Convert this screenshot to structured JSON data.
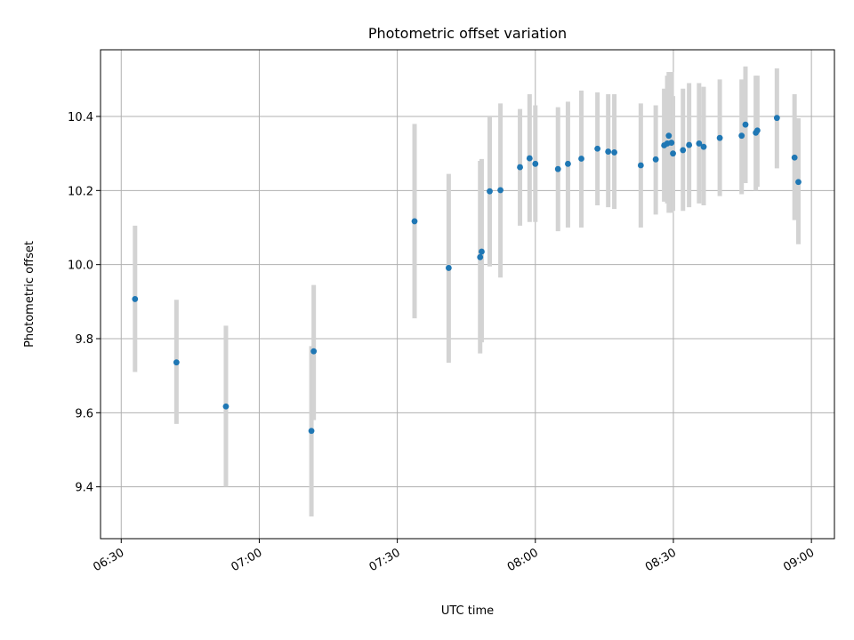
{
  "chart_data": {
    "type": "scatter",
    "title": "Photometric offset variation",
    "xlabel": "UTC time",
    "ylabel": "Photometric offset",
    "x_ticks": [
      "06:30",
      "07:00",
      "07:30",
      "08:00",
      "08:30",
      "09:00"
    ],
    "y_ticks": [
      "9.4",
      "9.6",
      "9.8",
      "10.0",
      "10.2",
      "10.4"
    ],
    "xlim": [
      "06:25:30",
      "09:05:00"
    ],
    "ylim": [
      9.26,
      10.58
    ],
    "grid": true,
    "marker_color": "#1f77b4",
    "errorbar_color": "#d3d3d3",
    "points": [
      {
        "t": "06:33:00",
        "y": 9.907,
        "lo": 9.71,
        "hi": 10.105
      },
      {
        "t": "06:42:00",
        "y": 9.736,
        "lo": 9.57,
        "hi": 9.905
      },
      {
        "t": "06:52:45",
        "y": 9.617,
        "lo": 9.4,
        "hi": 9.835
      },
      {
        "t": "07:11:20",
        "y": 9.551,
        "lo": 9.32,
        "hi": 9.78
      },
      {
        "t": "07:11:50",
        "y": 9.766,
        "lo": 9.58,
        "hi": 9.945
      },
      {
        "t": "07:33:45",
        "y": 10.117,
        "lo": 9.855,
        "hi": 10.38
      },
      {
        "t": "07:41:10",
        "y": 9.991,
        "lo": 9.735,
        "hi": 10.245
      },
      {
        "t": "07:48:00",
        "y": 10.02,
        "lo": 9.76,
        "hi": 10.28
      },
      {
        "t": "07:48:20",
        "y": 10.035,
        "lo": 9.79,
        "hi": 10.285
      },
      {
        "t": "07:50:05",
        "y": 10.198,
        "lo": 9.995,
        "hi": 10.4
      },
      {
        "t": "07:52:25",
        "y": 10.201,
        "lo": 9.965,
        "hi": 10.435
      },
      {
        "t": "07:56:40",
        "y": 10.263,
        "lo": 10.105,
        "hi": 10.42
      },
      {
        "t": "07:58:45",
        "y": 10.287,
        "lo": 10.115,
        "hi": 10.46
      },
      {
        "t": "08:00:00",
        "y": 10.272,
        "lo": 10.115,
        "hi": 10.43
      },
      {
        "t": "08:04:55",
        "y": 10.258,
        "lo": 10.09,
        "hi": 10.425
      },
      {
        "t": "08:07:05",
        "y": 10.272,
        "lo": 10.1,
        "hi": 10.44
      },
      {
        "t": "08:10:00",
        "y": 10.286,
        "lo": 10.1,
        "hi": 10.47
      },
      {
        "t": "08:13:30",
        "y": 10.313,
        "lo": 10.16,
        "hi": 10.465
      },
      {
        "t": "08:15:50",
        "y": 10.305,
        "lo": 10.155,
        "hi": 10.46
      },
      {
        "t": "08:17:10",
        "y": 10.303,
        "lo": 10.15,
        "hi": 10.46
      },
      {
        "t": "08:22:55",
        "y": 10.268,
        "lo": 10.1,
        "hi": 10.435
      },
      {
        "t": "08:26:10",
        "y": 10.284,
        "lo": 10.135,
        "hi": 10.43
      },
      {
        "t": "08:28:00",
        "y": 10.322,
        "lo": 10.17,
        "hi": 10.475
      },
      {
        "t": "08:28:40",
        "y": 10.327,
        "lo": 10.165,
        "hi": 10.51
      },
      {
        "t": "08:29:00",
        "y": 10.348,
        "lo": 10.14,
        "hi": 10.52
      },
      {
        "t": "08:29:35",
        "y": 10.329,
        "lo": 10.14,
        "hi": 10.52
      },
      {
        "t": "08:29:55",
        "y": 10.3,
        "lo": 10.145,
        "hi": 10.455
      },
      {
        "t": "08:32:05",
        "y": 10.309,
        "lo": 10.145,
        "hi": 10.475
      },
      {
        "t": "08:33:25",
        "y": 10.323,
        "lo": 10.155,
        "hi": 10.49
      },
      {
        "t": "08:35:35",
        "y": 10.327,
        "lo": 10.165,
        "hi": 10.49
      },
      {
        "t": "08:36:35",
        "y": 10.318,
        "lo": 10.16,
        "hi": 10.48
      },
      {
        "t": "08:40:05",
        "y": 10.342,
        "lo": 10.185,
        "hi": 10.5
      },
      {
        "t": "08:44:50",
        "y": 10.348,
        "lo": 10.19,
        "hi": 10.5
      },
      {
        "t": "08:45:40",
        "y": 10.378,
        "lo": 10.22,
        "hi": 10.535
      },
      {
        "t": "08:47:55",
        "y": 10.356,
        "lo": 10.2,
        "hi": 10.51
      },
      {
        "t": "08:48:15",
        "y": 10.362,
        "lo": 10.21,
        "hi": 10.51
      },
      {
        "t": "08:52:30",
        "y": 10.396,
        "lo": 10.26,
        "hi": 10.53
      },
      {
        "t": "08:56:20",
        "y": 10.289,
        "lo": 10.12,
        "hi": 10.46
      },
      {
        "t": "08:57:10",
        "y": 10.223,
        "lo": 10.055,
        "hi": 10.395
      }
    ]
  }
}
